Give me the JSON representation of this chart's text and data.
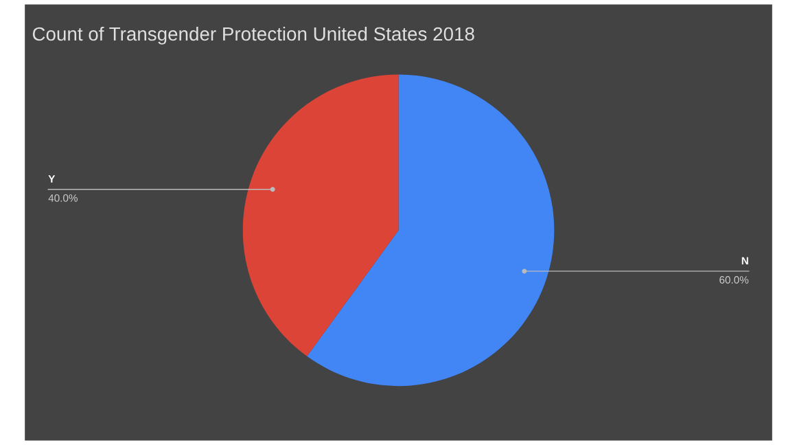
{
  "chart_data": {
    "type": "pie",
    "title": "Count of Transgender Protection United States 2018",
    "categories": [
      "N",
      "Y"
    ],
    "values": [
      60,
      40
    ],
    "value_labels": [
      "60.0%",
      "40.0%"
    ],
    "colors": [
      "#4285f4",
      "#db4437"
    ]
  }
}
